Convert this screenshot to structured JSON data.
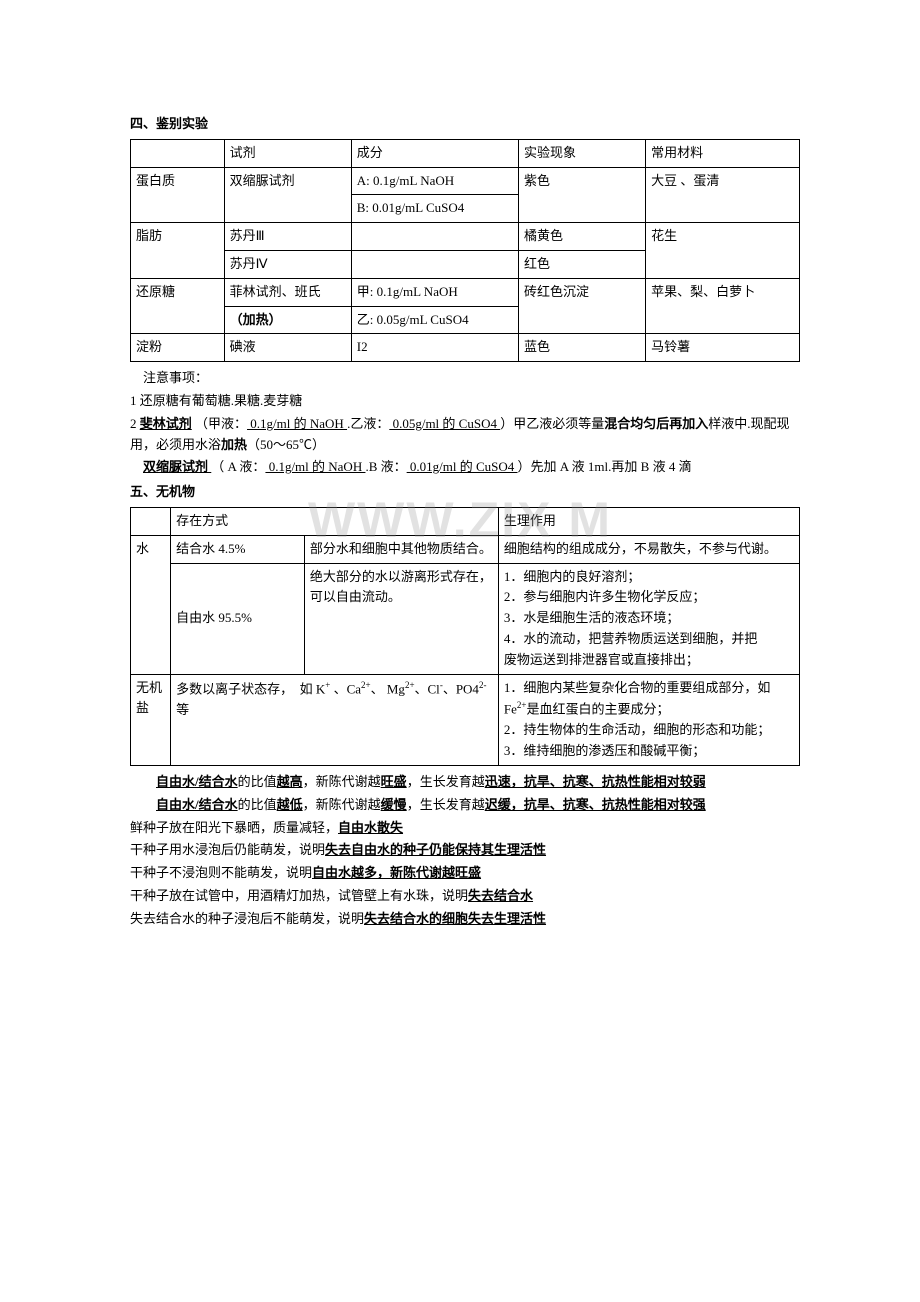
{
  "watermark": "WWW.ZIX         M",
  "heading4": "四、鉴别实验",
  "table1": {
    "cols": [
      "试剂",
      "成分",
      "实验现象",
      "常用材料"
    ],
    "rows": [
      {
        "c0": "蛋白质",
        "c1": "双缩脲试剂",
        "c2": "A: 0.1g/mL NaOH",
        "c3": "紫色",
        "c4": "大豆 、蛋清"
      },
      {
        "c0": "",
        "c1": "",
        "c2": "B: 0.01g/mL CuSO4",
        "c3": "",
        "c4": ""
      },
      {
        "c0": "脂肪",
        "c1": "苏丹Ⅲ",
        "c2": "",
        "c3": "橘黄色",
        "c4": "花生"
      },
      {
        "c0": "",
        "c1": "苏丹Ⅳ",
        "c2": "",
        "c3": "红色",
        "c4": ""
      },
      {
        "c0": "还原糖",
        "c1": "菲林试剂、班氏",
        "c2": "甲: 0.1g/mL NaOH",
        "c3": "砖红色沉淀",
        "c4": "苹果、梨、白萝卜"
      },
      {
        "c0": "",
        "c1": "（加热）",
        "c2": "乙: 0.05g/mL CuSO4",
        "c3": "",
        "c4": ""
      },
      {
        "c0": "淀粉",
        "c1": "碘液",
        "c2": "I2",
        "c3": "蓝色",
        "c4": "马铃薯"
      }
    ]
  },
  "notes": {
    "title": "注意事项：",
    "n1": "1 还原糖有葡萄糖.果糖.麦芽糖",
    "n2a": "2 ",
    "n2b": "斐林试剂",
    "n2c": " （甲液：",
    "n2d": " 0.1g/ml 的 NaOH ",
    "n2e": ".乙液：",
    "n2f": " 0.05g/ml 的 CuSO4 ",
    "n2g": "）甲乙液必须等量",
    "n2h": "混合均匀后再加入",
    "n2i": "样液中.现配现用，必须用水浴",
    "n2j": "加热",
    "n2k": "（50～65℃）",
    "n3a": "双缩脲试剂 ",
    "n3b": "（ A 液：",
    "n3c": " 0.1g/ml 的 NaOH ",
    "n3d": ".B 液：",
    "n3e": " 0.01g/ml 的 CuSO4 ",
    "n3f": "）先加 A 液 1ml.再加 B 液 4 滴"
  },
  "heading5": "五、无机物",
  "table2": {
    "head": {
      "h1": "存在方式",
      "h2": "生理作用"
    },
    "water_label": "水",
    "bound": {
      "name": "结合水 4.5%",
      "desc": "部分水和细胞中其他物质结合。",
      "func": "细胞结构的组成成分，不易散失，不参与代谢。"
    },
    "free": {
      "name": "自由水 95.5%",
      "desc": "绝大部分的水以游离形式存在，可以自由流动。",
      "f1": "1．细胞内的良好溶剂；",
      "f2": "2．参与细胞内许多生物化学反应；",
      "f3": "3．水是细胞生活的液态环境；",
      "f4": "4．水的流动，把营养物质运送到细胞，并把　　废物运送到排泄器官或直接排出；"
    },
    "salt_label": "无机盐",
    "salt": {
      "desc": "多数以离子状态存，　如 K+ 、Ca2+、 Mg2+、Cl-、PO42-等",
      "f1": "1．细胞内某些复杂化合物的重要组成部分，如 Fe2+是血红蛋白的主要成分；",
      "f2": "2．持生物体的生命活动，细胞的形态和功能；",
      "f3": "3．维持细胞的渗透压和酸碱平衡；"
    }
  },
  "para": {
    "p1a": "自由水/结合水",
    "p1b": "的比值",
    "p1c": "越高",
    "p1d": "，新陈代谢越",
    "p1e": "旺盛",
    "p1f": "，生长发育越",
    "p1g": "迅速，抗旱、抗寒、抗热性能相对较弱",
    "p2a": "自由水/结合水",
    "p2b": "的比值",
    "p2c": "越低",
    "p2d": "，新陈代谢越",
    "p2e": "缓慢",
    "p2f": "，生长发育越",
    "p2g": "迟缓，抗旱、抗寒、抗热性能相对较强",
    "p3a": "鲜种子放在阳光下暴晒，质量减轻，",
    "p3b": "自由水散失",
    "p4a": "干种子用水浸泡后仍能萌发，说明",
    "p4b": "失去自由水的种子仍能保持其生理活性",
    "p5a": "干种子不浸泡则不能萌发，说明",
    "p5b": "自由水越多，新陈代谢越旺盛",
    "p6a": "干种子放在试管中，用酒精灯加热，试管壁上有水珠，说明",
    "p6b": "失去结合水",
    "p7a": "失去结合水的种子浸泡后不能萌发，说明",
    "p7b": "失去结合水的细胞失去生理活性"
  }
}
